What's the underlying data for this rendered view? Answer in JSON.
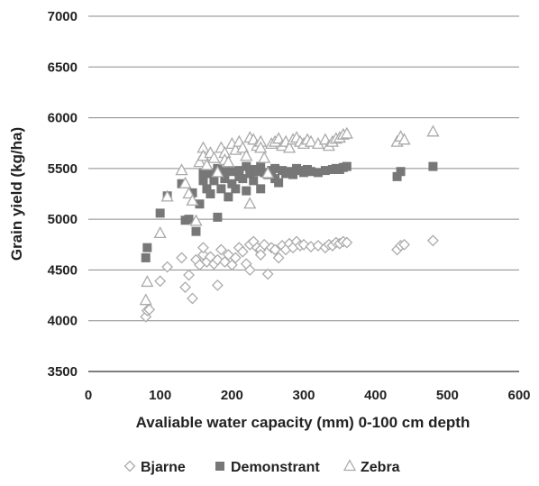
{
  "chart_data": {
    "type": "scatter",
    "title": "",
    "xlabel": "Avaliable water capacity (mm) 0-100 cm depth",
    "ylabel": "Grain yield (kg/ha)",
    "xlim": [
      0,
      600
    ],
    "ylim": [
      3500,
      7000
    ],
    "xticks": [
      "0",
      "100",
      "200",
      "300",
      "400",
      "500",
      "600"
    ],
    "yticks": [
      "3500",
      "4000",
      "4500",
      "5000",
      "5500",
      "6000",
      "6500",
      "7000"
    ],
    "grid": "horizontal",
    "legend_position": "bottom",
    "series": [
      {
        "name": "Bjarne",
        "marker": "diamond-open",
        "color": "#aaaaaa",
        "points": [
          [
            80,
            4040
          ],
          [
            82,
            4100
          ],
          [
            85,
            4110
          ],
          [
            100,
            4390
          ],
          [
            110,
            4530
          ],
          [
            130,
            4620
          ],
          [
            135,
            4330
          ],
          [
            140,
            4450
          ],
          [
            145,
            4220
          ],
          [
            150,
            4600
          ],
          [
            155,
            4550
          ],
          [
            160,
            4650
          ],
          [
            160,
            4720
          ],
          [
            165,
            4580
          ],
          [
            170,
            4630
          ],
          [
            175,
            4560
          ],
          [
            180,
            4350
          ],
          [
            180,
            4600
          ],
          [
            185,
            4700
          ],
          [
            190,
            4580
          ],
          [
            195,
            4650
          ],
          [
            200,
            4550
          ],
          [
            205,
            4620
          ],
          [
            210,
            4720
          ],
          [
            215,
            4680
          ],
          [
            220,
            4560
          ],
          [
            225,
            4750
          ],
          [
            225,
            4500
          ],
          [
            230,
            4780
          ],
          [
            235,
            4720
          ],
          [
            240,
            4700
          ],
          [
            240,
            4650
          ],
          [
            245,
            4750
          ],
          [
            250,
            4460
          ],
          [
            255,
            4720
          ],
          [
            260,
            4700
          ],
          [
            265,
            4620
          ],
          [
            270,
            4740
          ],
          [
            275,
            4700
          ],
          [
            280,
            4760
          ],
          [
            285,
            4720
          ],
          [
            290,
            4780
          ],
          [
            295,
            4740
          ],
          [
            300,
            4750
          ],
          [
            310,
            4730
          ],
          [
            320,
            4740
          ],
          [
            330,
            4720
          ],
          [
            335,
            4750
          ],
          [
            340,
            4740
          ],
          [
            345,
            4770
          ],
          [
            350,
            4760
          ],
          [
            355,
            4780
          ],
          [
            360,
            4770
          ],
          [
            430,
            4700
          ],
          [
            435,
            4740
          ],
          [
            440,
            4750
          ],
          [
            480,
            4790
          ]
        ]
      },
      {
        "name": "Demonstrant",
        "marker": "square-filled",
        "color": "#777777",
        "points": [
          [
            80,
            4620
          ],
          [
            82,
            4720
          ],
          [
            100,
            5060
          ],
          [
            110,
            5230
          ],
          [
            130,
            5350
          ],
          [
            135,
            4990
          ],
          [
            140,
            5000
          ],
          [
            145,
            5260
          ],
          [
            150,
            4880
          ],
          [
            155,
            5150
          ],
          [
            160,
            5380
          ],
          [
            160,
            5450
          ],
          [
            165,
            5300
          ],
          [
            170,
            5450
          ],
          [
            170,
            5250
          ],
          [
            175,
            5380
          ],
          [
            180,
            5020
          ],
          [
            180,
            5500
          ],
          [
            185,
            5300
          ],
          [
            190,
            5400
          ],
          [
            190,
            5470
          ],
          [
            195,
            5220
          ],
          [
            200,
            5350
          ],
          [
            200,
            5470
          ],
          [
            205,
            5300
          ],
          [
            210,
            5420
          ],
          [
            210,
            5480
          ],
          [
            215,
            5400
          ],
          [
            220,
            5520
          ],
          [
            220,
            5280
          ],
          [
            225,
            5450
          ],
          [
            230,
            5490
          ],
          [
            230,
            5380
          ],
          [
            235,
            5470
          ],
          [
            240,
            5520
          ],
          [
            240,
            5300
          ],
          [
            245,
            5460
          ],
          [
            250,
            5440
          ],
          [
            255,
            5480
          ],
          [
            260,
            5400
          ],
          [
            260,
            5500
          ],
          [
            265,
            5360
          ],
          [
            270,
            5480
          ],
          [
            275,
            5450
          ],
          [
            280,
            5470
          ],
          [
            285,
            5440
          ],
          [
            290,
            5500
          ],
          [
            295,
            5480
          ],
          [
            300,
            5460
          ],
          [
            305,
            5490
          ],
          [
            310,
            5470
          ],
          [
            320,
            5460
          ],
          [
            330,
            5480
          ],
          [
            340,
            5490
          ],
          [
            345,
            5500
          ],
          [
            350,
            5490
          ],
          [
            355,
            5510
          ],
          [
            360,
            5520
          ],
          [
            430,
            5420
          ],
          [
            435,
            5470
          ],
          [
            480,
            5520
          ]
        ]
      },
      {
        "name": "Zebra",
        "marker": "triangle-open",
        "color": "#aaaaaa",
        "points": [
          [
            80,
            4200
          ],
          [
            82,
            4380
          ],
          [
            100,
            4860
          ],
          [
            110,
            5220
          ],
          [
            130,
            5480
          ],
          [
            135,
            5350
          ],
          [
            140,
            5250
          ],
          [
            145,
            5180
          ],
          [
            150,
            4980
          ],
          [
            155,
            5560
          ],
          [
            160,
            5700
          ],
          [
            160,
            5620
          ],
          [
            165,
            5530
          ],
          [
            170,
            5650
          ],
          [
            175,
            5600
          ],
          [
            180,
            5460
          ],
          [
            185,
            5700
          ],
          [
            190,
            5650
          ],
          [
            190,
            5580
          ],
          [
            195,
            5560
          ],
          [
            200,
            5740
          ],
          [
            205,
            5680
          ],
          [
            210,
            5760
          ],
          [
            215,
            5700
          ],
          [
            220,
            5620
          ],
          [
            225,
            5800
          ],
          [
            225,
            5150
          ],
          [
            230,
            5780
          ],
          [
            235,
            5720
          ],
          [
            240,
            5760
          ],
          [
            240,
            5700
          ],
          [
            245,
            5600
          ],
          [
            250,
            5450
          ],
          [
            255,
            5740
          ],
          [
            260,
            5760
          ],
          [
            265,
            5790
          ],
          [
            270,
            5720
          ],
          [
            275,
            5760
          ],
          [
            280,
            5700
          ],
          [
            285,
            5780
          ],
          [
            290,
            5800
          ],
          [
            295,
            5760
          ],
          [
            300,
            5740
          ],
          [
            305,
            5780
          ],
          [
            310,
            5760
          ],
          [
            320,
            5740
          ],
          [
            330,
            5780
          ],
          [
            335,
            5720
          ],
          [
            340,
            5760
          ],
          [
            345,
            5790
          ],
          [
            350,
            5800
          ],
          [
            355,
            5830
          ],
          [
            360,
            5840
          ],
          [
            430,
            5760
          ],
          [
            435,
            5810
          ],
          [
            440,
            5780
          ],
          [
            480,
            5860
          ]
        ]
      }
    ]
  }
}
